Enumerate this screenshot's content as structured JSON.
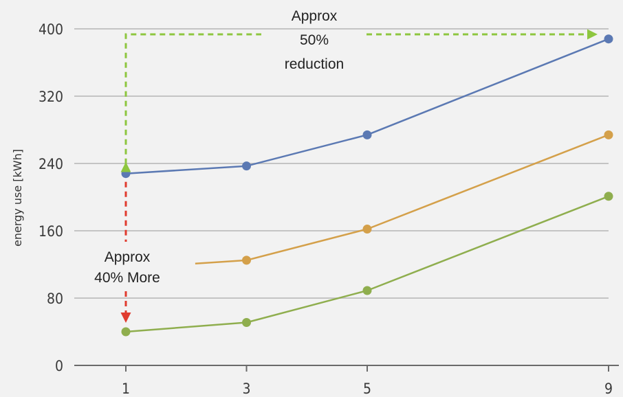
{
  "chart_data": {
    "type": "line",
    "xlabel": "",
    "ylabel": "energy use [kWh]",
    "x": [
      1,
      3,
      5,
      9
    ],
    "xticks": [
      "1",
      "3",
      "5",
      "9"
    ],
    "xlim": [
      1,
      9
    ],
    "ylim": [
      0,
      400
    ],
    "yticks": [
      0,
      80,
      160,
      240,
      320,
      400
    ],
    "ytick_labels": [
      "0",
      "80",
      "160",
      "240",
      "320",
      "400"
    ],
    "grid": true,
    "legend": "none",
    "series": [
      {
        "color": "#5b79b3",
        "points": [
          [
            1,
            228
          ],
          [
            3,
            237
          ],
          [
            5,
            274
          ],
          [
            9,
            388
          ]
        ]
      },
      {
        "color": "#d4a04a",
        "points": [
          [
            2.15,
            121
          ],
          [
            3,
            125
          ],
          [
            5,
            162
          ],
          [
            9,
            274
          ]
        ]
      },
      {
        "color": "#8fae4e",
        "points": [
          [
            1,
            40
          ],
          [
            3,
            51
          ],
          [
            5,
            89
          ],
          [
            9,
            201
          ]
        ]
      }
    ],
    "annotations": [
      {
        "lines": [
          "Approx",
          "50%",
          "reduction"
        ],
        "color": "#8dc63f"
      },
      {
        "lines": [
          "Approx",
          "40% More"
        ],
        "color": "#e03b2f"
      }
    ]
  }
}
